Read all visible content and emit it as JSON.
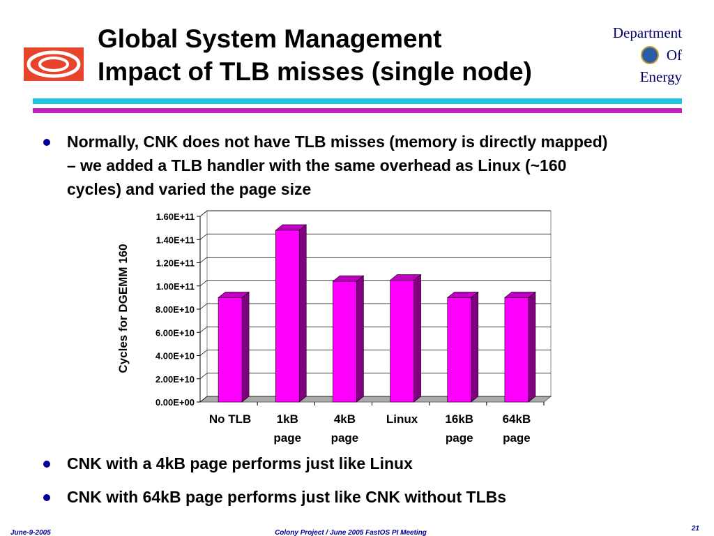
{
  "header": {
    "title_lines": [
      "Global System Management",
      "Impact of TLB misses (single node)"
    ],
    "agency_lines": [
      "Department",
      "Of",
      "Energy"
    ]
  },
  "bullets": [
    "Normally, CNK does not have TLB misses (memory is directly mapped) – we added a TLB handler with the same overhead as Linux (~160 cycles) and varied the page size",
    "CNK with a 4kB page performs just like Linux",
    "CNK with 64kB page performs just like CNK without TLBs"
  ],
  "chart_data": {
    "type": "bar",
    "y_label": "Cycles for DGEMM 160",
    "categories": [
      "No TLB",
      "1kB page",
      "4kB page",
      "Linux",
      "16kB page",
      "64kB page"
    ],
    "values": [
      90000000000,
      148000000000,
      104000000000,
      105000000000,
      90000000000,
      90000000000
    ],
    "color": "#ff00ff",
    "grid": true,
    "ylim": [
      0,
      160000000000
    ],
    "yticks": [
      {
        "value": 0,
        "label": "0.00E+00"
      },
      {
        "value": 20000000000,
        "label": "2.00E+10"
      },
      {
        "value": 40000000000,
        "label": "4.00E+10"
      },
      {
        "value": 60000000000,
        "label": "6.00E+10"
      },
      {
        "value": 80000000000,
        "label": "8.00E+10"
      },
      {
        "value": 100000000000,
        "label": "1.00E+11"
      },
      {
        "value": 120000000000,
        "label": "1.20E+11"
      },
      {
        "value": 140000000000,
        "label": "1.40E+11"
      },
      {
        "value": 160000000000,
        "label": "1.60E+11"
      }
    ]
  },
  "footer": {
    "date": "June-9-2005",
    "event": "Colony Project / June 2005 FastOS PI Meeting",
    "page": "21"
  }
}
